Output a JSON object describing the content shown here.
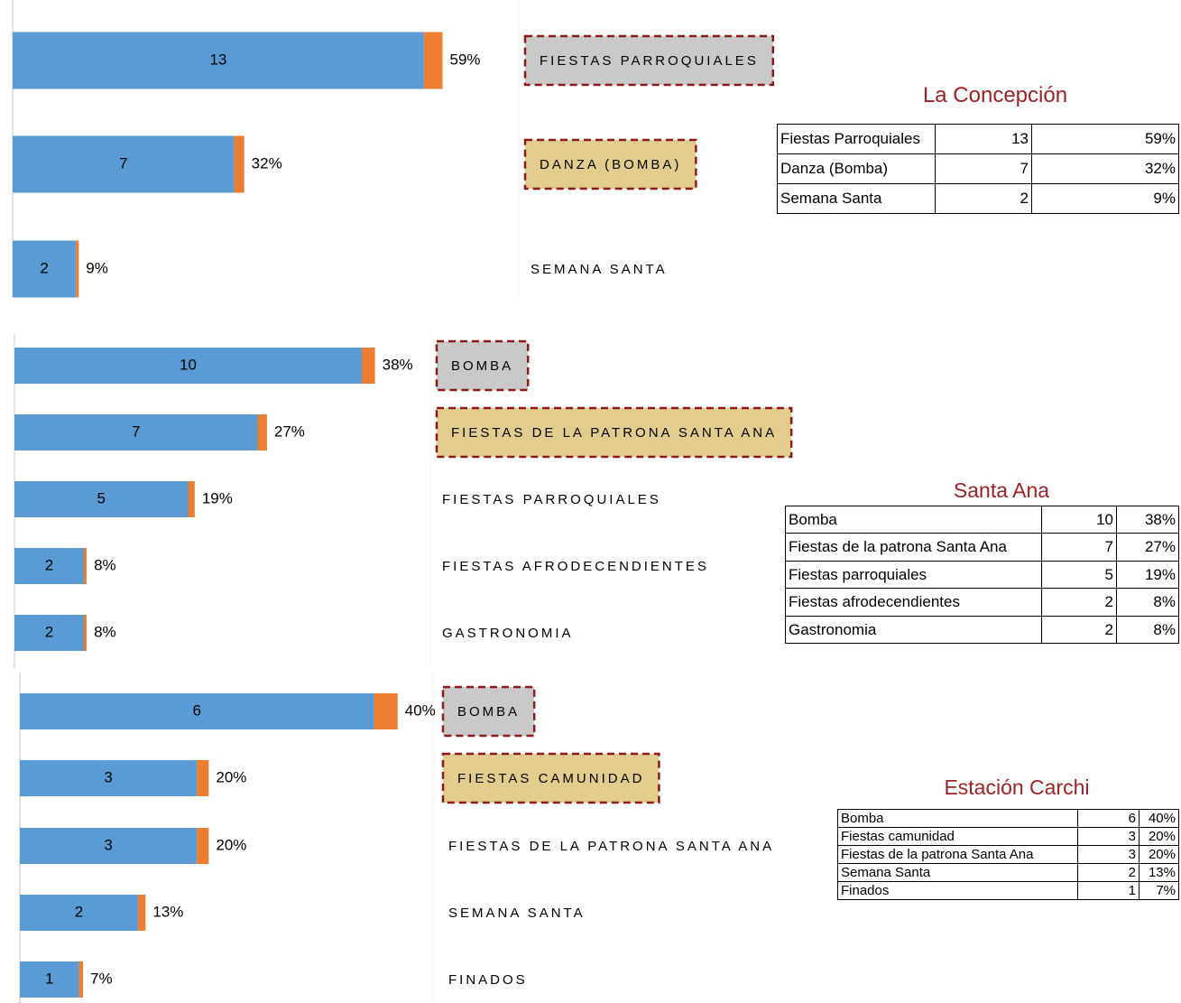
{
  "chart_data": [
    {
      "type": "bar",
      "orientation": "horizontal",
      "stacked": true,
      "categories": [
        "FIESTAS PARROQUIALES",
        "DANZA (BOMBA)",
        "SEMANA SANTA"
      ],
      "label_boxes": [
        "#c9c9c9",
        "#e2cd8e",
        null
      ],
      "xlim": [
        0,
        16
      ],
      "series": [
        {
          "color": "#5b9bd5",
          "values": [
            13,
            7,
            2
          ]
        },
        {
          "color": "#ed7d31",
          "values": [
            0.59,
            0.32,
            0.09
          ],
          "value_labels": [
            "59%",
            "32%",
            "9%"
          ]
        }
      ]
    },
    {
      "type": "bar",
      "orientation": "horizontal",
      "stacked": true,
      "categories": [
        "BOMBA",
        "FIESTAS DE LA PATRONA SANTA ANA",
        "FIESTAS PARROQUIALES",
        "FIESTAS AFRODECENDIENTES",
        "GASTRONOMIA"
      ],
      "label_boxes": [
        "#c9c9c9",
        "#e2cd8e",
        null,
        null,
        null
      ],
      "xlim": [
        0,
        12
      ],
      "series": [
        {
          "color": "#5b9bd5",
          "values": [
            10,
            7,
            5,
            2,
            2
          ]
        },
        {
          "color": "#ed7d31",
          "values": [
            0.38,
            0.27,
            0.19,
            0.08,
            0.08
          ],
          "value_labels": [
            "38%",
            "27%",
            "19%",
            "8%",
            "8%"
          ]
        }
      ]
    },
    {
      "type": "bar",
      "orientation": "horizontal",
      "stacked": true,
      "categories": [
        "BOMBA",
        "FIESTAS CAMUNIDAD",
        "FIESTAS DE LA PATRONA SANTA ANA",
        "SEMANA SANTA",
        "FINADOS"
      ],
      "label_boxes": [
        "#c9c9c9",
        "#e2cd8e",
        null,
        null,
        null
      ],
      "xlim": [
        0,
        7
      ],
      "series": [
        {
          "color": "#5b9bd5",
          "values": [
            6,
            3,
            3,
            2,
            1
          ]
        },
        {
          "color": "#ed7d31",
          "values": [
            0.4,
            0.2,
            0.2,
            0.13,
            0.07
          ],
          "value_labels": [
            "40%",
            "20%",
            "20%",
            "13%",
            "7%"
          ]
        }
      ]
    }
  ],
  "tables": [
    {
      "title": "La Concepción",
      "rows": [
        [
          "Fiestas Parroquiales",
          "13",
          "59%"
        ],
        [
          "Danza (Bomba)",
          "7",
          "32%"
        ],
        [
          "Semana Santa",
          "2",
          "9%"
        ]
      ]
    },
    {
      "title": "Santa Ana",
      "rows": [
        [
          "Bomba",
          "10",
          "38%"
        ],
        [
          "Fiestas de la patrona Santa Ana",
          "7",
          "27%"
        ],
        [
          "Fiestas parroquiales",
          "5",
          "19%"
        ],
        [
          "Fiestas afrodecendientes",
          "2",
          "8%"
        ],
        [
          "Gastronomia",
          "2",
          "8%"
        ]
      ]
    },
    {
      "title": "Estación Carchi",
      "rows": [
        [
          "Bomba",
          "6",
          "40%"
        ],
        [
          "Fiestas camunidad",
          "3",
          "20%"
        ],
        [
          "Fiestas de la patrona Santa Ana",
          "3",
          "20%"
        ],
        [
          "Semana Santa",
          "2",
          "13%"
        ],
        [
          "Finados",
          "1",
          "7%"
        ]
      ]
    }
  ]
}
